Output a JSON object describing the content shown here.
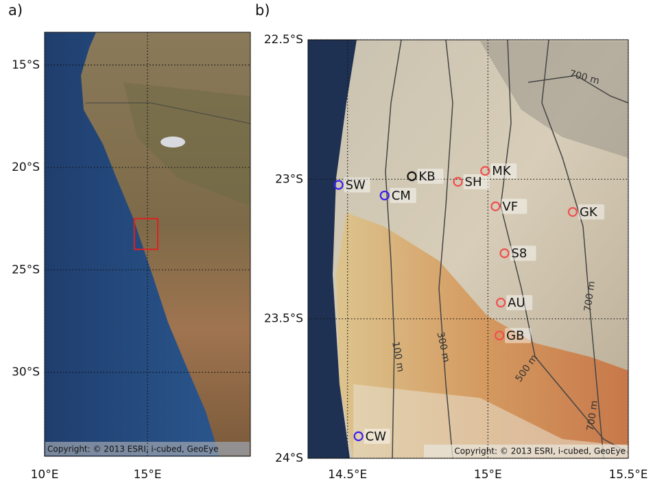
{
  "panels": [
    {
      "label": "a)",
      "xlim": [
        10,
        20
      ],
      "ylim": [
        -34.1,
        -13.4
      ],
      "xticks": [
        {
          "value": 10,
          "label": "10°E"
        },
        {
          "value": 15,
          "label": "15°E"
        }
      ],
      "yticks": [
        {
          "value": -15,
          "label": "15°S"
        },
        {
          "value": -20,
          "label": "20°S"
        },
        {
          "value": -25,
          "label": "25°S"
        },
        {
          "value": -30,
          "label": "30°S"
        }
      ],
      "box_color": "#e02020",
      "copyright": "Copyright: © 2013 ESRI, i-cubed, GeoEye"
    },
    {
      "label": "b)",
      "xlim": [
        14.359,
        15.5
      ],
      "ylim": [
        -24,
        -22.5
      ],
      "xticks": [
        {
          "value": 14.5,
          "label": "14.5°E"
        },
        {
          "value": 15,
          "label": "15°E"
        },
        {
          "value": 15.5,
          "label": "15.5°E"
        }
      ],
      "yticks": [
        {
          "value": -22.5,
          "label": "22.5°S"
        },
        {
          "value": -23,
          "label": "23°S"
        },
        {
          "value": -23.5,
          "label": "23.5°S"
        },
        {
          "value": -24,
          "label": "24°S"
        }
      ],
      "stations": [
        {
          "name": "SW",
          "lon": 14.468,
          "lat": -23.02,
          "color": "#3a1ff0"
        },
        {
          "name": "CM",
          "lon": 14.632,
          "lat": -23.058,
          "color": "#3a1ff0"
        },
        {
          "name": "KB",
          "lon": 14.729,
          "lat": -22.989,
          "color": "#111111"
        },
        {
          "name": "SH",
          "lon": 14.893,
          "lat": -23.009,
          "color": "#f05050"
        },
        {
          "name": "MK",
          "lon": 14.99,
          "lat": -22.97,
          "color": "#f05050"
        },
        {
          "name": "VF",
          "lon": 15.027,
          "lat": -23.097,
          "color": "#f05050"
        },
        {
          "name": "GK",
          "lon": 15.302,
          "lat": -23.117,
          "color": "#f05050"
        },
        {
          "name": "S8",
          "lon": 15.059,
          "lat": -23.265,
          "color": "#f05050"
        },
        {
          "name": "AU",
          "lon": 15.046,
          "lat": -23.442,
          "color": "#f05050"
        },
        {
          "name": "GB",
          "lon": 15.041,
          "lat": -23.56,
          "color": "#f05050"
        },
        {
          "name": "CW",
          "lon": 14.539,
          "lat": -23.921,
          "color": "#3a1ff0"
        }
      ],
      "contours": [
        "700 m",
        "100 m",
        "300 m",
        "500 m",
        "700 m",
        "700 m"
      ],
      "copyright": "Copyright: © 2013 ESRI, i-cubed, GeoEye"
    }
  ]
}
